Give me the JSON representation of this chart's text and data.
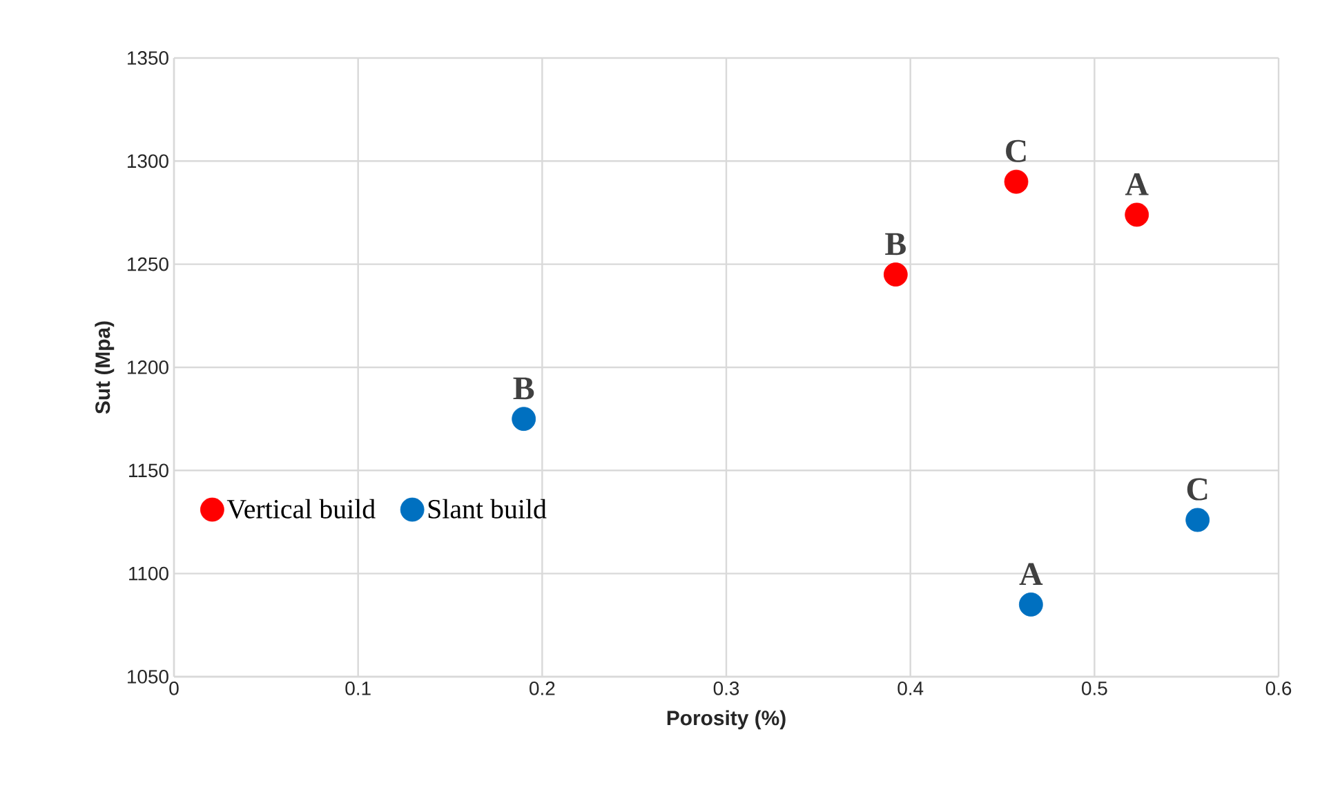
{
  "chart_data": {
    "type": "scatter",
    "xlabel": "Porosity (%)",
    "ylabel": "Sut (Mpa)",
    "xlim": [
      0,
      0.6
    ],
    "xticks": [
      0,
      0.1,
      0.2,
      0.3,
      0.4,
      0.5,
      0.6
    ],
    "ylim": [
      1050,
      1350
    ],
    "yticks": [
      1050,
      1100,
      1150,
      1200,
      1250,
      1300,
      1350
    ],
    "grid": true,
    "legend": "left",
    "marker": "circle",
    "series": [
      {
        "name": "Vertical build",
        "color": "#ff0000",
        "x": [
          0.392,
          0.4575,
          0.523
        ],
        "values": [
          1245,
          1290,
          1274
        ]
      },
      {
        "name": "Slant build",
        "color": "#0070c0",
        "x": [
          0.19,
          0.4655,
          0.556
        ],
        "values": [
          1175,
          1085,
          1126
        ]
      }
    ],
    "annotations": [
      {
        "text": "B",
        "x": 0.392,
        "y": 1245
      },
      {
        "text": "C",
        "x": 0.4575,
        "y": 1290
      },
      {
        "text": "A",
        "x": 0.523,
        "y": 1274
      },
      {
        "text": "B",
        "x": 0.19,
        "y": 1175
      },
      {
        "text": "A",
        "x": 0.4655,
        "y": 1085
      },
      {
        "text": "C",
        "x": 0.556,
        "y": 1126
      }
    ]
  }
}
